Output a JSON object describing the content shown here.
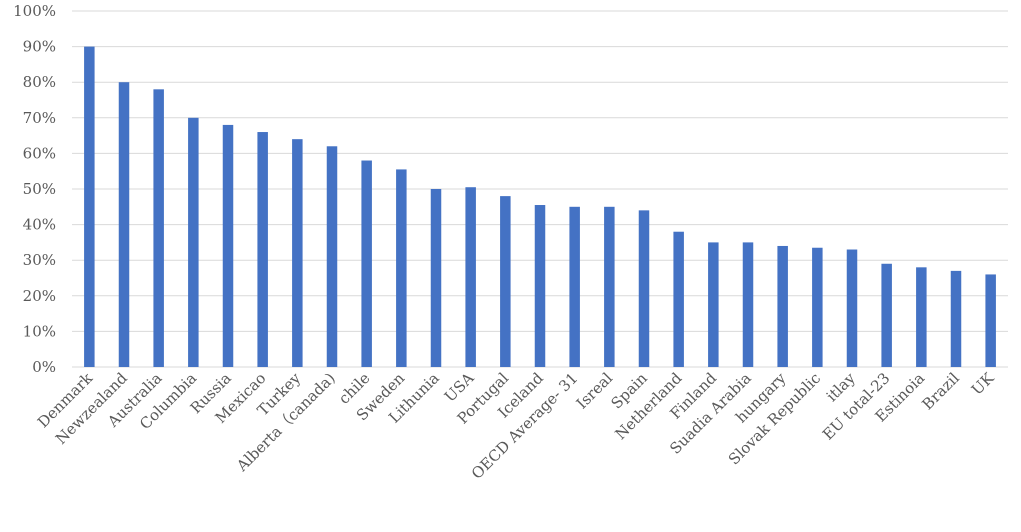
{
  "chart_data": {
    "type": "bar",
    "title": "",
    "xlabel": "",
    "ylabel": "",
    "ylim": [
      0,
      100
    ],
    "y_ticks": [
      "0%",
      "10%",
      "20%",
      "30%",
      "40%",
      "50%",
      "60%",
      "70%",
      "80%",
      "90%",
      "100%"
    ],
    "grid": true,
    "bar_color": "#4472C4",
    "grid_color": "#D9D9D9",
    "categories": [
      "Denmark",
      "Newzealand",
      "Australia",
      "Columbia",
      "Russia",
      "Mexicao",
      "Turkey",
      "Alberta（canada)",
      "chile",
      "Sweden",
      "Lithunia",
      "USA",
      "Portugal",
      "Iceland",
      "OECD Average- 31",
      "Isreal",
      "Spain",
      "Netherland",
      "Finland",
      "Suadia Arabia",
      "hungary",
      "Slovak Republic",
      "itlay",
      "EU total-23",
      "Estinoia",
      "Brazil",
      "UK"
    ],
    "values": [
      90,
      80,
      78,
      70,
      68,
      66,
      64,
      62,
      58,
      55.5,
      50,
      50.5,
      48,
      45.5,
      45,
      45,
      44,
      38,
      35,
      35,
      34,
      33.5,
      33,
      29,
      28,
      27,
      26
    ]
  }
}
